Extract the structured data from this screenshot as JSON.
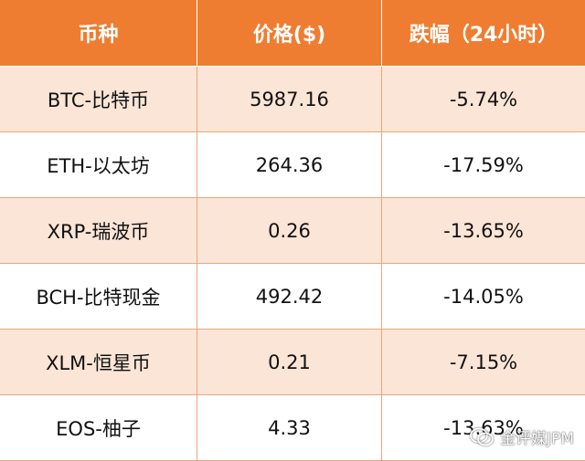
{
  "table": {
    "headers": [
      "币种",
      "价格($)",
      "跌幅（24小时）"
    ],
    "rows": [
      {
        "coin": "BTC-比特币",
        "price": "5987.16",
        "change": "-5.74%"
      },
      {
        "coin": "ETH-以太坊",
        "price": "264.36",
        "change": "-17.59%"
      },
      {
        "coin": "XRP-瑞波币",
        "price": "0.26",
        "change": "-13.65%"
      },
      {
        "coin": "BCH-比特现金",
        "price": "492.42",
        "change": "-14.05%"
      },
      {
        "coin": "XLM-恒星币",
        "price": "0.21",
        "change": "-7.15%"
      },
      {
        "coin": "EOS-柚子",
        "price": "4.33",
        "change": "-13.63%"
      }
    ]
  },
  "colors": {
    "header_bg": "#ef7d31",
    "shaded_row_bg": "#fbe5d6",
    "border": "#e8a77a"
  },
  "watermark": {
    "icon": "wechat-icon",
    "text": "金评媒JPM"
  }
}
